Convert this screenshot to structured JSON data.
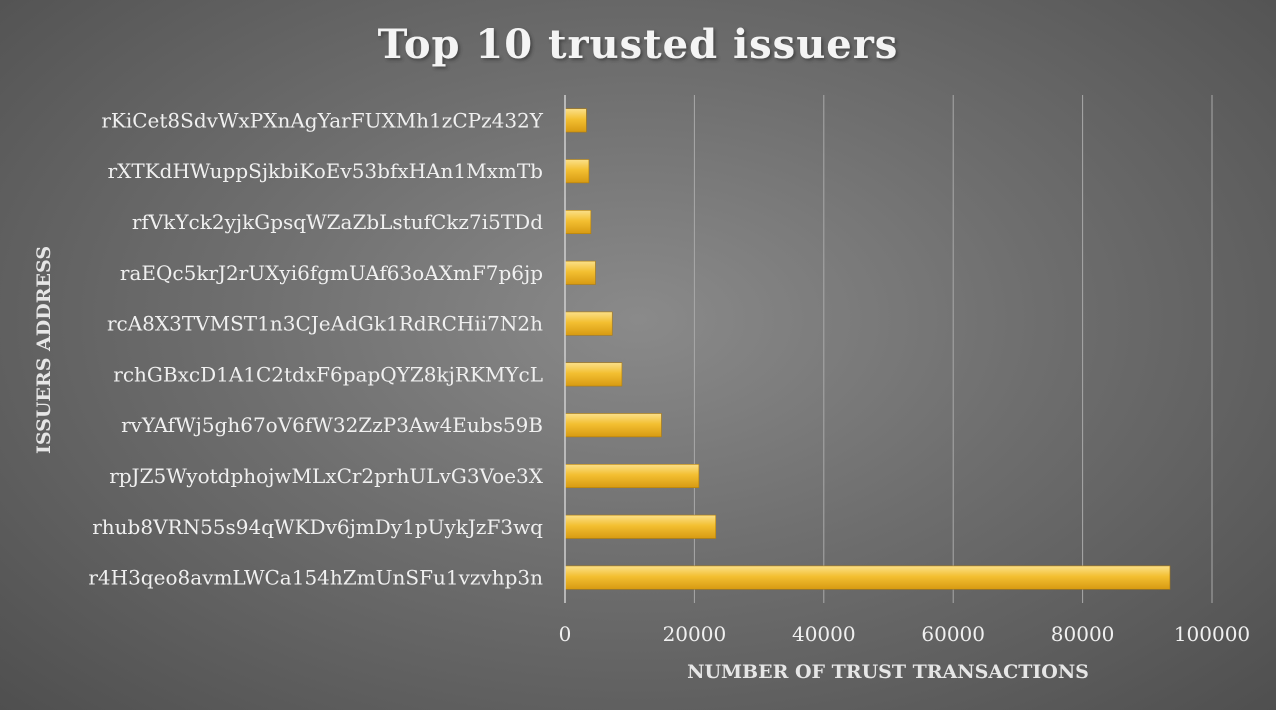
{
  "chart_data": {
    "type": "bar",
    "orientation": "horizontal",
    "title": "Top 10 trusted issuers",
    "xlabel": "NUMBER OF TRUST TRANSACTIONS",
    "ylabel": "ISSUERS ADDRESS",
    "xlim": [
      0,
      100000
    ],
    "xticks": [
      "0",
      "20000",
      "40000",
      "60000",
      "80000",
      "100000"
    ],
    "categories": [
      "rKiCet8SdvWxPXnAgYarFUXMh1zCPz432Y",
      "rXTKdHWuppSjkbiKoEv53bfxHAn1MxmTb",
      "rfVkYck2yjkGpsqWZaZbLstufCkz7i5TDd",
      "raEQc5krJ2rUXyi6fgmUAf63oAXmF7p6jp",
      "rcA8X3TVMST1n3CJeAdGk1RdRCHii7N2h",
      "rchGBxcD1A1C2tdxF6papQYZ8kjRKMYcL",
      "rvYAfWj5gh67oV6fW32ZzP3Aw4Eubs59B",
      "rpJZ5WyotdphojwMLxCr2prhULvG3Voe3X",
      "rhub8VRN55s94qWKDv6jmDy1pUykJzF3wq",
      "r4H3qeo8avmLWCa154hZmUnSFu1vzvhp3n"
    ],
    "values": [
      3300,
      3700,
      4000,
      4700,
      7300,
      8800,
      14900,
      20700,
      23300,
      93500
    ],
    "grid": true,
    "legend": "none",
    "bar_color": "#f0b82a"
  }
}
